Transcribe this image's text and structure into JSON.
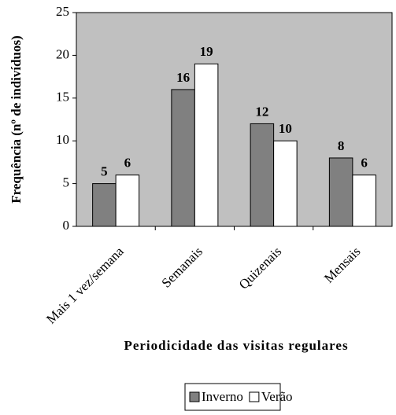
{
  "chart_data": {
    "type": "bar",
    "x_label": "Periodicidade das visitas regulares",
    "y_label": "Frequência (nº de indivíduos)",
    "categories": [
      "Mais 1 vez/semana",
      "Semanais",
      "Quizenais",
      "Mensais"
    ],
    "series": [
      {
        "name": "Inverno",
        "color": "#808080",
        "values": [
          5,
          16,
          12,
          8
        ]
      },
      {
        "name": "Verão",
        "color": "#ffffff",
        "values": [
          6,
          19,
          10,
          6
        ]
      }
    ],
    "ylim": [
      0,
      25
    ],
    "yticks": [
      0,
      5,
      10,
      15,
      20,
      25
    ],
    "plot_background": "#c0c0c0",
    "legend": "bottom"
  }
}
